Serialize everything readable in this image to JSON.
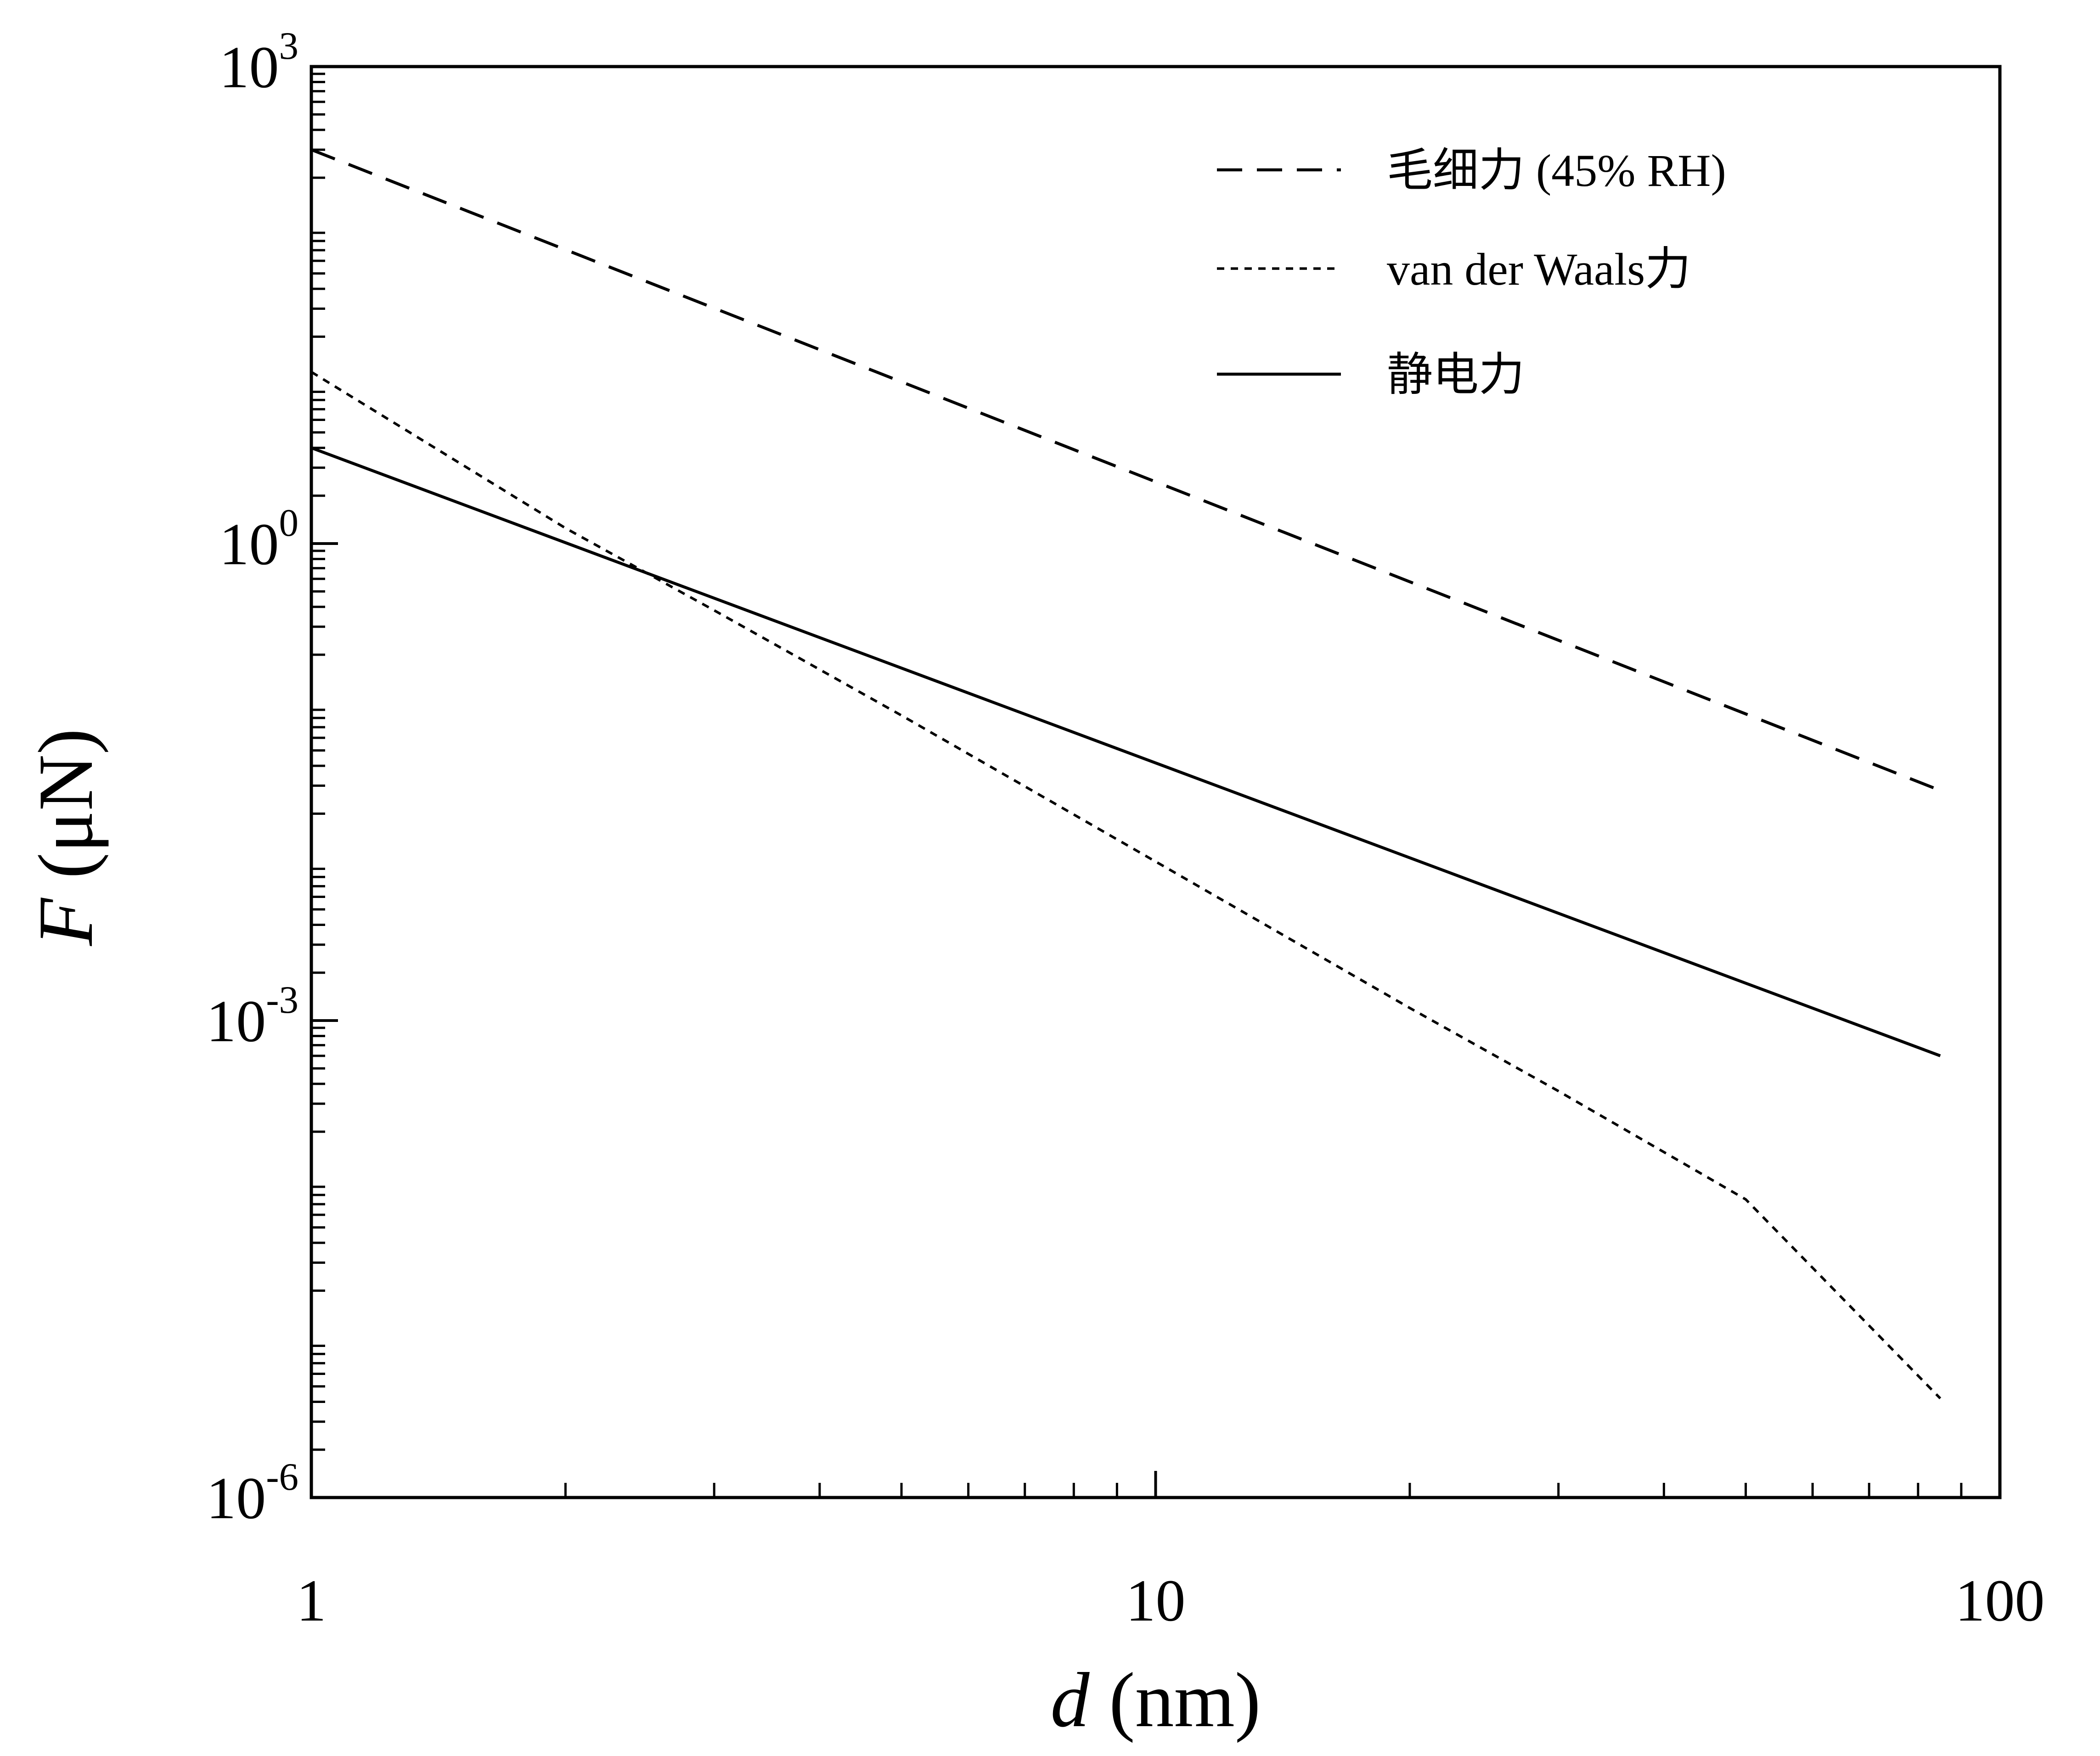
{
  "chart_data": {
    "type": "line",
    "title": "",
    "x_scale": "log",
    "y_scale": "log",
    "xlabel": {
      "symbol": "d",
      "unit": "(nm)"
    },
    "ylabel": {
      "symbol": "F",
      "unit": "(μN)"
    },
    "xlim": [
      1,
      100
    ],
    "ylim": [
      1e-06,
      1000
    ],
    "x_ticks": [
      {
        "value": 1,
        "label": "1"
      },
      {
        "value": 10,
        "label": "10"
      },
      {
        "value": 100,
        "label": "100"
      }
    ],
    "y_ticks": [
      {
        "value": 1e-06,
        "base": "10",
        "exp": "-6"
      },
      {
        "value": 0.001,
        "base": "10",
        "exp": "-3"
      },
      {
        "value": 1,
        "base": "10",
        "exp": "0"
      },
      {
        "value": 1000,
        "base": "10",
        "exp": "3"
      }
    ],
    "grid": false,
    "legend": {
      "placement": "top-right"
    },
    "series": [
      {
        "name": "毛细力 (45% RH)",
        "style": "dashed",
        "color": "#000000",
        "x": [
          1,
          85
        ],
        "y": [
          300,
          0.028
        ]
      },
      {
        "name": "van der Waals力",
        "style": "dotted",
        "color": "#000000",
        "x": [
          1,
          2,
          3,
          5,
          10,
          20,
          30,
          50,
          85
        ],
        "y": [
          12,
          1.25,
          0.38,
          0.083,
          0.01,
          0.0012,
          0.00036,
          7.5e-05,
          4.2e-06
        ]
      },
      {
        "name": "静电力",
        "style": "solid",
        "color": "#000000",
        "x": [
          1,
          85
        ],
        "y": [
          4,
          0.0006
        ]
      }
    ]
  }
}
